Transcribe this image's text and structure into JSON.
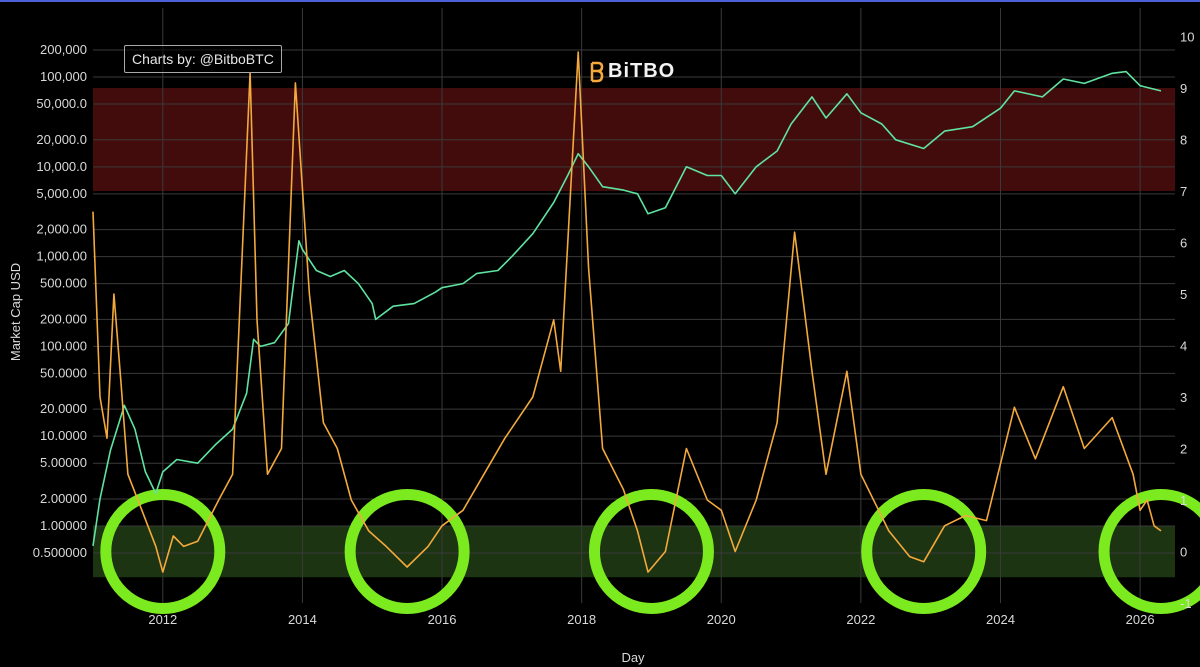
{
  "credit_label": "Charts by: @BitboBTC",
  "brand_name": "BiTBO",
  "colors": {
    "background": "#000000",
    "grid": "#3a3a3a",
    "market_cap_line": "#5fe3a1",
    "oscillator_line": "#f3a93c",
    "red_band": "#4a0d0d",
    "green_band": "#1f3a14",
    "circle": "#7bea1f"
  },
  "chart_data": {
    "type": "line",
    "xlabel": "Day",
    "ylabel": "Market Cap USD",
    "x_ticks": [
      "2012",
      "2014",
      "2016",
      "2018",
      "2020",
      "2022",
      "2024",
      "2026"
    ],
    "y_ticks_left": [
      "200,000",
      "100,000",
      "50,000.0",
      "20,000.0",
      "10,000.0",
      "5,000.00",
      "2,000.00",
      "1,000.00",
      "500.000",
      "200.000",
      "100.000",
      "50.0000",
      "20.0000",
      "10.0000",
      "5.00000",
      "2.00000",
      "1.00000",
      "0.500000"
    ],
    "y_ticks_right": [
      "10",
      "9",
      "8",
      "7",
      "6",
      "5",
      "4",
      "3",
      "2",
      "1",
      "0",
      "-1"
    ],
    "y_left_scale": "log",
    "xlim": [
      2011.0,
      2026.5
    ],
    "ylim_right": [
      -1,
      10
    ],
    "grid": true,
    "bands": [
      {
        "axis": "right",
        "from": 7,
        "to": 9,
        "color": "red"
      },
      {
        "axis": "right",
        "from": -0.5,
        "to": 0.5,
        "color": "green"
      }
    ],
    "highlight_circles_x": [
      2012.0,
      2015.5,
      2019.0,
      2022.9,
      2026.3
    ],
    "series": [
      {
        "axis": "left",
        "color": "#5fe3a1",
        "points": [
          [
            2011.0,
            0.6
          ],
          [
            2011.1,
            2.0
          ],
          [
            2011.25,
            7
          ],
          [
            2011.45,
            22
          ],
          [
            2011.6,
            12
          ],
          [
            2011.75,
            4
          ],
          [
            2011.9,
            2.3
          ],
          [
            2012.0,
            4
          ],
          [
            2012.2,
            5.5
          ],
          [
            2012.5,
            5
          ],
          [
            2012.75,
            8
          ],
          [
            2013.0,
            12
          ],
          [
            2013.2,
            30
          ],
          [
            2013.3,
            120
          ],
          [
            2013.4,
            100
          ],
          [
            2013.6,
            110
          ],
          [
            2013.8,
            180
          ],
          [
            2013.95,
            1500
          ],
          [
            2014.0,
            1200
          ],
          [
            2014.2,
            700
          ],
          [
            2014.4,
            600
          ],
          [
            2014.6,
            700
          ],
          [
            2014.8,
            500
          ],
          [
            2015.0,
            300
          ],
          [
            2015.05,
            200
          ],
          [
            2015.3,
            280
          ],
          [
            2015.6,
            300
          ],
          [
            2015.9,
            400
          ],
          [
            2016.0,
            450
          ],
          [
            2016.3,
            500
          ],
          [
            2016.5,
            650
          ],
          [
            2016.8,
            700
          ],
          [
            2017.0,
            1000
          ],
          [
            2017.3,
            1800
          ],
          [
            2017.6,
            4000
          ],
          [
            2017.8,
            8000
          ],
          [
            2017.95,
            14000
          ],
          [
            2018.1,
            10000
          ],
          [
            2018.3,
            6000
          ],
          [
            2018.6,
            5500
          ],
          [
            2018.8,
            5000
          ],
          [
            2018.95,
            3000
          ],
          [
            2019.2,
            3500
          ],
          [
            2019.5,
            10000
          ],
          [
            2019.8,
            8000
          ],
          [
            2020.0,
            8000
          ],
          [
            2020.2,
            5000
          ],
          [
            2020.5,
            10000
          ],
          [
            2020.8,
            15000
          ],
          [
            2021.0,
            30000
          ],
          [
            2021.3,
            60000
          ],
          [
            2021.5,
            35000
          ],
          [
            2021.8,
            65000
          ],
          [
            2022.0,
            40000
          ],
          [
            2022.3,
            30000
          ],
          [
            2022.5,
            20000
          ],
          [
            2022.9,
            16000
          ],
          [
            2023.2,
            25000
          ],
          [
            2023.6,
            28000
          ],
          [
            2024.0,
            45000
          ],
          [
            2024.2,
            70000
          ],
          [
            2024.6,
            60000
          ],
          [
            2024.9,
            95000
          ],
          [
            2025.2,
            85000
          ],
          [
            2025.6,
            110000
          ],
          [
            2025.8,
            115000
          ],
          [
            2026.0,
            80000
          ],
          [
            2026.3,
            70000
          ]
        ]
      },
      {
        "axis": "right",
        "color": "#f3a93c",
        "points": [
          [
            2011.0,
            6.6
          ],
          [
            2011.1,
            3.0
          ],
          [
            2011.2,
            2.2
          ],
          [
            2011.3,
            5.0
          ],
          [
            2011.4,
            3.3
          ],
          [
            2011.5,
            1.5
          ],
          [
            2011.7,
            0.8
          ],
          [
            2011.9,
            0.1
          ],
          [
            2012.0,
            -0.4
          ],
          [
            2012.15,
            0.3
          ],
          [
            2012.3,
            0.1
          ],
          [
            2012.5,
            0.2
          ],
          [
            2012.8,
            1.0
          ],
          [
            2013.0,
            1.5
          ],
          [
            2013.25,
            9.3
          ],
          [
            2013.35,
            4.5
          ],
          [
            2013.5,
            1.5
          ],
          [
            2013.7,
            2.0
          ],
          [
            2013.9,
            9.1
          ],
          [
            2014.1,
            5.0
          ],
          [
            2014.3,
            2.5
          ],
          [
            2014.5,
            2.0
          ],
          [
            2014.7,
            1.0
          ],
          [
            2014.95,
            0.4
          ],
          [
            2015.2,
            0.1
          ],
          [
            2015.5,
            -0.3
          ],
          [
            2015.8,
            0.1
          ],
          [
            2016.0,
            0.5
          ],
          [
            2016.3,
            0.8
          ],
          [
            2016.6,
            1.5
          ],
          [
            2016.9,
            2.2
          ],
          [
            2017.3,
            3.0
          ],
          [
            2017.6,
            4.5
          ],
          [
            2017.7,
            3.5
          ],
          [
            2017.95,
            9.7
          ],
          [
            2018.1,
            5.5
          ],
          [
            2018.3,
            2.0
          ],
          [
            2018.6,
            1.2
          ],
          [
            2018.8,
            0.4
          ],
          [
            2018.95,
            -0.4
          ],
          [
            2019.2,
            0.0
          ],
          [
            2019.5,
            2.0
          ],
          [
            2019.8,
            1.0
          ],
          [
            2020.0,
            0.8
          ],
          [
            2020.2,
            0.0
          ],
          [
            2020.5,
            1.0
          ],
          [
            2020.8,
            2.5
          ],
          [
            2021.05,
            6.2
          ],
          [
            2021.3,
            3.5
          ],
          [
            2021.5,
            1.5
          ],
          [
            2021.8,
            3.5
          ],
          [
            2022.0,
            1.5
          ],
          [
            2022.4,
            0.4
          ],
          [
            2022.7,
            -0.1
          ],
          [
            2022.9,
            -0.2
          ],
          [
            2023.2,
            0.5
          ],
          [
            2023.5,
            0.7
          ],
          [
            2023.8,
            0.6
          ],
          [
            2024.2,
            2.8
          ],
          [
            2024.5,
            1.8
          ],
          [
            2024.9,
            3.2
          ],
          [
            2025.2,
            2.0
          ],
          [
            2025.6,
            2.6
          ],
          [
            2025.9,
            1.5
          ],
          [
            2026.0,
            0.8
          ],
          [
            2026.1,
            1.0
          ],
          [
            2026.2,
            0.5
          ],
          [
            2026.3,
            0.4
          ]
        ]
      }
    ]
  }
}
